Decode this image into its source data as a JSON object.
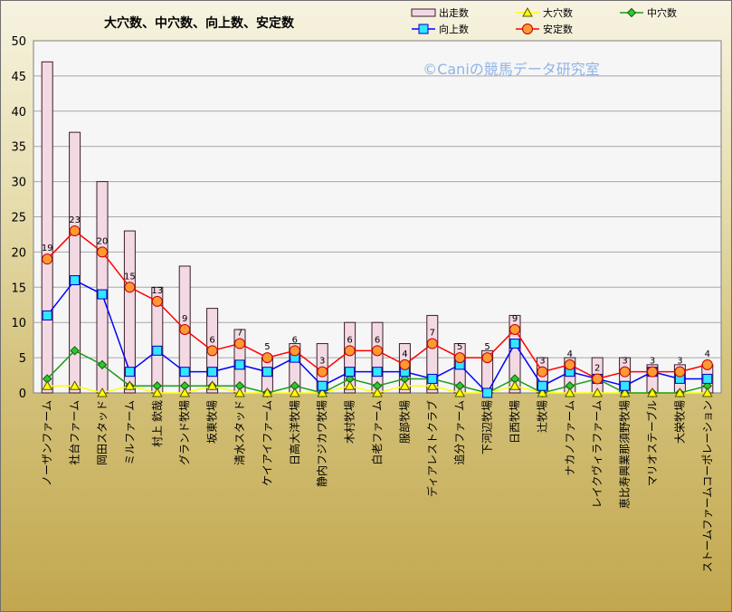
{
  "chart_data": {
    "type": "bar",
    "title": "大穴数、中穴数、向上数、安定数",
    "watermark": "©Caniの競馬データ研究室",
    "ylim": [
      0,
      50
    ],
    "yticks": [
      0,
      5,
      10,
      15,
      20,
      25,
      30,
      35,
      40,
      45,
      50
    ],
    "grid": true,
    "legend_position": "top-right",
    "categories": [
      "ノーザンファーム",
      "社台ファーム",
      "岡田スタッド",
      "ミルファーム",
      "村上 欽哉",
      "グランド牧場",
      "坂東牧場",
      "清水スタッド",
      "ケイアイファーム",
      "日高大洋牧場",
      "静内フジカワ牧場",
      "木村牧場",
      "白老ファーム",
      "服部牧場",
      "ディアレストクラブ",
      "追分ファーム",
      "下河辺牧場",
      "日西牧場",
      "辻牧場",
      "ナカノファーム",
      "レイクヴィラファーム",
      "恵比寿興業那須野牧場",
      "マリオステーブル",
      "大栄牧場",
      "ストームファームコーポレーション"
    ],
    "series": [
      {
        "name": "出走数",
        "kind": "bar",
        "color": "#f3d9e3",
        "values": [
          47,
          37,
          30,
          23,
          15,
          18,
          12,
          9,
          5,
          7,
          7,
          10,
          10,
          7,
          11,
          7,
          6,
          11,
          5,
          5,
          5,
          5,
          4,
          4,
          4
        ]
      },
      {
        "name": "大穴数",
        "kind": "line",
        "color": "#ffff00",
        "marker": "triangle",
        "values": [
          1,
          1,
          0,
          1,
          0,
          0,
          1,
          0,
          0,
          0,
          0,
          1,
          0,
          1,
          1,
          0,
          0,
          1,
          0,
          0,
          0,
          0,
          0,
          0,
          0
        ]
      },
      {
        "name": "中穴数",
        "kind": "line",
        "color": "#1a9c1a",
        "marker": "diamond",
        "values": [
          2,
          6,
          4,
          1,
          1,
          1,
          1,
          1,
          0,
          1,
          0,
          2,
          1,
          2,
          2,
          1,
          0,
          2,
          0,
          1,
          2,
          0,
          0,
          0,
          1
        ]
      },
      {
        "name": "向上数",
        "kind": "line",
        "color": "#0000ff",
        "marker": "square",
        "values": [
          11,
          16,
          14,
          3,
          6,
          3,
          3,
          4,
          3,
          5,
          1,
          3,
          3,
          3,
          2,
          4,
          0,
          7,
          1,
          3,
          2,
          1,
          3,
          2,
          2
        ]
      },
      {
        "name": "安定数",
        "kind": "line",
        "color": "#ff0000",
        "marker": "circle",
        "values": [
          19,
          23,
          20,
          15,
          13,
          9,
          6,
          7,
          5,
          6,
          3,
          6,
          6,
          4,
          7,
          5,
          5,
          9,
          3,
          4,
          2,
          3,
          3,
          3,
          4
        ]
      }
    ],
    "data_labels": [
      19,
      23,
      20,
      15,
      13,
      9,
      6,
      7,
      5,
      6,
      3,
      6,
      6,
      4,
      7,
      5,
      5,
      9,
      3,
      4,
      2,
      3,
      3,
      3,
      4
    ]
  }
}
